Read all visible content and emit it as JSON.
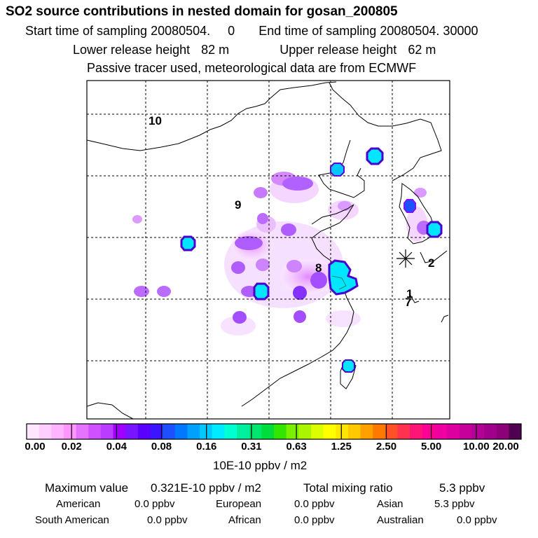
{
  "header": {
    "title": "SO2 source contributions in nested domain for gosan_200805",
    "start_label": "Start time of sampling",
    "start_value": "20080504.     0",
    "end_label": "End time of sampling",
    "end_value": "20080504. 30000",
    "lower_label": "Lower release height",
    "lower_value": "82 m",
    "upper_label": "Upper release height",
    "upper_value": "62 m",
    "note": "Passive tracer used, meteorological data are from ECMWF"
  },
  "map": {
    "grid_labels": [
      "10",
      "9",
      "8",
      "2",
      "1",
      "7"
    ],
    "receptor_icon": "asterisk-icon"
  },
  "colorbar": {
    "colors": [
      "#ffe6ff",
      "#ffcdff",
      "#ffb4ff",
      "#ff96ff",
      "#e673ff",
      "#d050ff",
      "#b93cff",
      "#a000ff",
      "#7814ff",
      "#5a00ff",
      "#3c14ff",
      "#1e50ff",
      "#0078ff",
      "#00a0ff",
      "#00c8ff",
      "#00ebff",
      "#00ffd2",
      "#00f0a0",
      "#00e66e",
      "#00dc3c",
      "#32e600",
      "#78f000",
      "#aaf500",
      "#dcff00",
      "#ffff00",
      "#ffe600",
      "#ffc800",
      "#ffa000",
      "#ff7800",
      "#ff5028",
      "#ff3250",
      "#ff1478",
      "#ff0096",
      "#f000a0",
      "#dc00a0",
      "#c8009b",
      "#b40096",
      "#a0008c",
      "#8c0078",
      "#500050"
    ],
    "ticks": [
      "0.00",
      "0.02",
      "0.04",
      "0.08",
      "0.16",
      "0.31",
      "0.63",
      "1.25",
      "2.50",
      "5.00",
      "10.00",
      "20.00"
    ],
    "units": "10E-10 ppbv / m2"
  },
  "summary": {
    "max_label": "Maximum value",
    "max_value": "0.321E-10 ppbv / m2",
    "total_label": "Total mixing ratio",
    "total_value": "5.3 ppbv",
    "regions": [
      {
        "name": "American",
        "value": "0.0 ppbv"
      },
      {
        "name": "European",
        "value": "0.0 ppbv"
      },
      {
        "name": "Asian",
        "value": "5.3 ppbv"
      },
      {
        "name": "South American",
        "value": "0.0 ppbv"
      },
      {
        "name": "African",
        "value": "0.0 ppbv"
      },
      {
        "name": "Australian",
        "value": "0.0 ppbv"
      }
    ]
  }
}
